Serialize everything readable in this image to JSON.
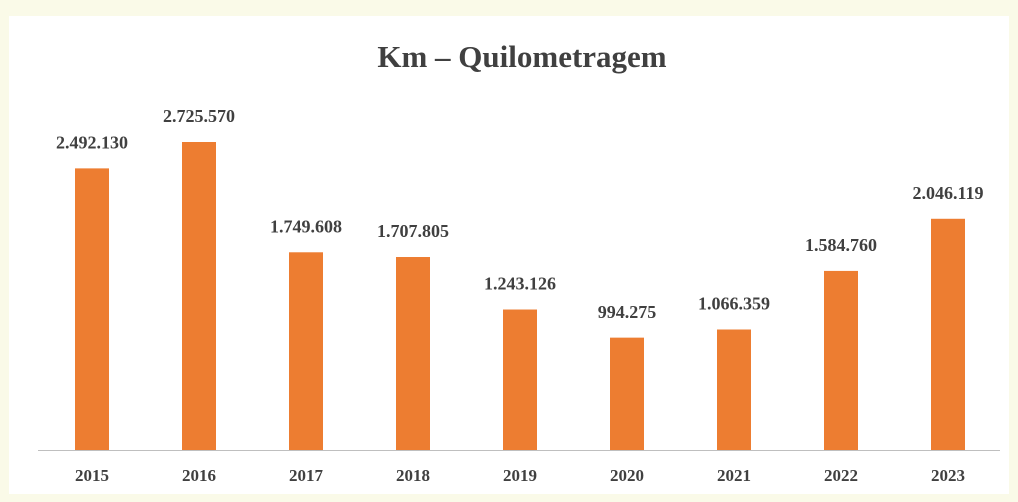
{
  "chart_data": {
    "type": "bar",
    "title": "Km – Quilometragem",
    "categories": [
      "2015",
      "2016",
      "2017",
      "2018",
      "2019",
      "2020",
      "2021",
      "2022",
      "2023"
    ],
    "values": [
      2492130,
      2725570,
      1749608,
      1707805,
      1243126,
      994275,
      1066359,
      1584760,
      2046119
    ],
    "value_labels": [
      "2.492.130",
      "2.725.570",
      "1.749.608",
      "1.707.805",
      "1.243.126",
      "994.275",
      "1.066.359",
      "1.584.760",
      "2.046.119"
    ],
    "color": "#ed7d31"
  }
}
